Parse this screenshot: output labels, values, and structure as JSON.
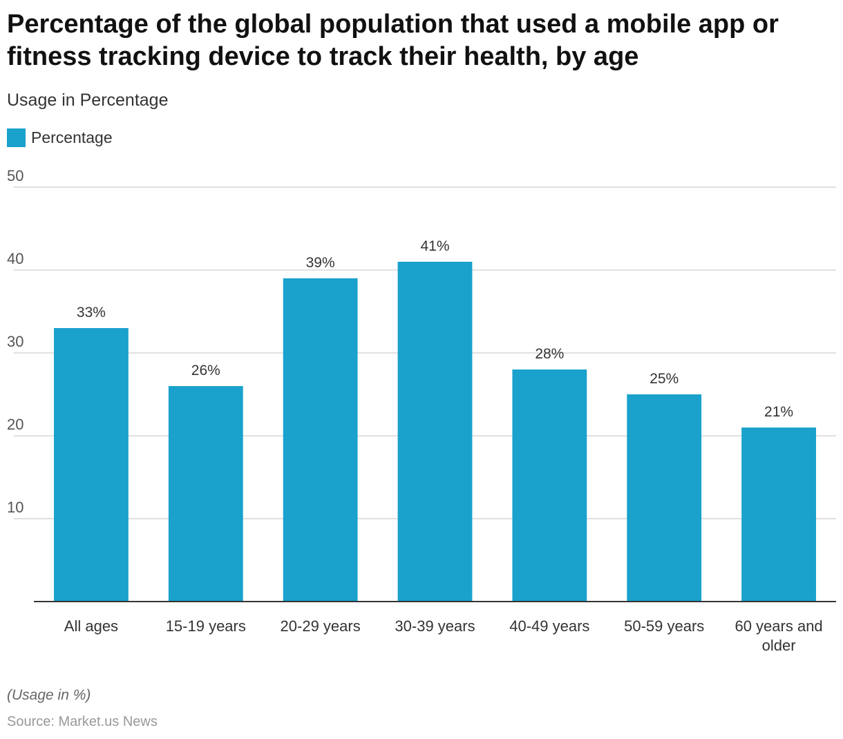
{
  "title": "Percentage of the global population that used a mobile app or fitness tracking device to track their health, by age",
  "subtitle": "Usage in Percentage",
  "legend": {
    "label": "Percentage",
    "color": "#1aa1cc"
  },
  "note": "(Usage in %)",
  "source": "Source: Market.us News",
  "chart_data": {
    "type": "bar",
    "title": "Percentage of the global population that used a mobile app or fitness tracking device to track their health, by age",
    "ylabel": "Usage in Percentage",
    "xlabel": "",
    "categories": [
      "All ages",
      "15-19 years",
      "20-29 years",
      "30-39 years",
      "40-49 years",
      "50-59 years",
      "60 years and older"
    ],
    "category_label_lines": [
      [
        "All ages"
      ],
      [
        "15-19 years"
      ],
      [
        "20-29 years"
      ],
      [
        "30-39 years"
      ],
      [
        "40-49 years"
      ],
      [
        "50-59 years"
      ],
      [
        "60 years and",
        "older"
      ]
    ],
    "series": [
      {
        "name": "Percentage",
        "values": [
          33,
          26,
          39,
          41,
          28,
          25,
          21
        ]
      }
    ],
    "data_labels": [
      "33%",
      "26%",
      "39%",
      "41%",
      "28%",
      "25%",
      "21%"
    ],
    "ylim": [
      0,
      50
    ],
    "yticks": [
      10,
      20,
      30,
      40,
      50
    ],
    "grid": true,
    "legend_position": "top-left",
    "bar_color": "#1aa1cc"
  }
}
